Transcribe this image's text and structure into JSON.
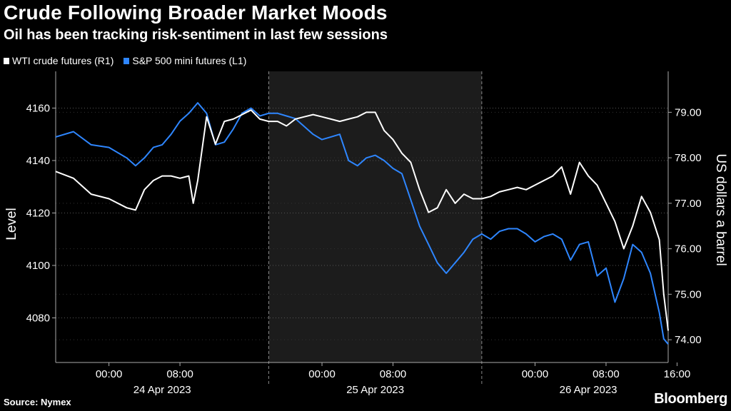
{
  "chart_data": {
    "type": "line",
    "title": "Crude Following Broader Market Moods",
    "subtitle": "Oil has been tracking risk-sentiment in last few sessions",
    "left_axis": {
      "label": "Level",
      "range": [
        4063,
        4174
      ],
      "ticks": [
        4080,
        4100,
        4120,
        4140,
        4160
      ]
    },
    "right_axis": {
      "label": "US dollars a barrel",
      "range": [
        73.5,
        79.9
      ],
      "ticks": [
        "74.00",
        "75.00",
        "76.00",
        "77.00",
        "78.00",
        "79.00"
      ]
    },
    "x_axis": {
      "time_labels": [
        "00:00",
        "08:00",
        "00:00",
        "08:00",
        "00:00",
        "08:00",
        "16:00"
      ],
      "date_labels": [
        "24 Apr 2023",
        "25 Apr 2023",
        "26 Apr 2023"
      ]
    },
    "x_range": [
      -6,
      63
    ],
    "time_ticks": [
      0,
      8,
      24,
      32,
      48,
      56,
      64
    ],
    "day_separators": [
      18,
      42
    ],
    "shaded_session": [
      18,
      42
    ],
    "grid": "horizontal-dotted",
    "legend_position": "top-left",
    "series": [
      {
        "name": "WTI crude futures (R1)",
        "axis": "right",
        "color": "#ffffff",
        "points": [
          [
            -6,
            77.7
          ],
          [
            -4,
            77.55
          ],
          [
            -2,
            77.2
          ],
          [
            0,
            77.1
          ],
          [
            2,
            76.9
          ],
          [
            3,
            76.85
          ],
          [
            4,
            77.3
          ],
          [
            5,
            77.5
          ],
          [
            6,
            77.6
          ],
          [
            7,
            77.6
          ],
          [
            8,
            77.55
          ],
          [
            9,
            77.6
          ],
          [
            9.5,
            77.0
          ],
          [
            10,
            77.5
          ],
          [
            11,
            78.9
          ],
          [
            12,
            78.3
          ],
          [
            13,
            78.8
          ],
          [
            14,
            78.85
          ],
          [
            15,
            78.95
          ],
          [
            16,
            79.05
          ],
          [
            17,
            78.85
          ],
          [
            18,
            78.8
          ],
          [
            19,
            78.8
          ],
          [
            20,
            78.7
          ],
          [
            21,
            78.85
          ],
          [
            22,
            78.9
          ],
          [
            23,
            78.95
          ],
          [
            24,
            78.9
          ],
          [
            25,
            78.85
          ],
          [
            26,
            78.8
          ],
          [
            27,
            78.85
          ],
          [
            28,
            78.9
          ],
          [
            29,
            79.0
          ],
          [
            30,
            79.0
          ],
          [
            31,
            78.6
          ],
          [
            32,
            78.4
          ],
          [
            33,
            78.1
          ],
          [
            34,
            77.9
          ],
          [
            35,
            77.3
          ],
          [
            36,
            76.8
          ],
          [
            37,
            76.9
          ],
          [
            38,
            77.3
          ],
          [
            39,
            77.0
          ],
          [
            40,
            77.2
          ],
          [
            41,
            77.1
          ],
          [
            42,
            77.1
          ],
          [
            43,
            77.15
          ],
          [
            44,
            77.25
          ],
          [
            45,
            77.3
          ],
          [
            46,
            77.35
          ],
          [
            47,
            77.3
          ],
          [
            48,
            77.4
          ],
          [
            49,
            77.5
          ],
          [
            50,
            77.6
          ],
          [
            51,
            77.8
          ],
          [
            52,
            77.2
          ],
          [
            53,
            77.9
          ],
          [
            54,
            77.6
          ],
          [
            55,
            77.4
          ],
          [
            56,
            77.0
          ],
          [
            57,
            76.6
          ],
          [
            58,
            76.0
          ],
          [
            59,
            76.5
          ],
          [
            60,
            77.15
          ],
          [
            61,
            76.8
          ],
          [
            62,
            76.2
          ],
          [
            62.5,
            75.0
          ],
          [
            63,
            74.2
          ]
        ]
      },
      {
        "name": "S&P 500 mini futures  (L1)",
        "axis": "left",
        "color": "#2e86ff",
        "points": [
          [
            -6,
            4149
          ],
          [
            -4,
            4151
          ],
          [
            -2,
            4146
          ],
          [
            0,
            4145
          ],
          [
            2,
            4141
          ],
          [
            3,
            4138
          ],
          [
            4,
            4141
          ],
          [
            5,
            4145
          ],
          [
            6,
            4146
          ],
          [
            7,
            4150
          ],
          [
            8,
            4155
          ],
          [
            9,
            4158
          ],
          [
            10,
            4162
          ],
          [
            11,
            4158
          ],
          [
            12,
            4146
          ],
          [
            13,
            4147
          ],
          [
            14,
            4152
          ],
          [
            15,
            4158
          ],
          [
            16,
            4160
          ],
          [
            17,
            4157
          ],
          [
            18,
            4158
          ],
          [
            19,
            4158
          ],
          [
            20,
            4157
          ],
          [
            21,
            4156
          ],
          [
            22,
            4153
          ],
          [
            23,
            4150
          ],
          [
            24,
            4148
          ],
          [
            25,
            4149
          ],
          [
            26,
            4150
          ],
          [
            27,
            4140
          ],
          [
            28,
            4138
          ],
          [
            29,
            4141
          ],
          [
            30,
            4142
          ],
          [
            31,
            4140
          ],
          [
            32,
            4137
          ],
          [
            33,
            4135
          ],
          [
            34,
            4125
          ],
          [
            35,
            4115
          ],
          [
            36,
            4108
          ],
          [
            37,
            4101
          ],
          [
            38,
            4097
          ],
          [
            39,
            4101
          ],
          [
            40,
            4105
          ],
          [
            41,
            4110
          ],
          [
            42,
            4112
          ],
          [
            43,
            4110
          ],
          [
            44,
            4113
          ],
          [
            45,
            4114
          ],
          [
            46,
            4114
          ],
          [
            47,
            4112
          ],
          [
            48,
            4109
          ],
          [
            49,
            4111
          ],
          [
            50,
            4112
          ],
          [
            51,
            4110
          ],
          [
            52,
            4102
          ],
          [
            53,
            4108
          ],
          [
            54,
            4109
          ],
          [
            55,
            4096
          ],
          [
            56,
            4099
          ],
          [
            57,
            4086
          ],
          [
            58,
            4095
          ],
          [
            59,
            4108
          ],
          [
            60,
            4105
          ],
          [
            61,
            4097
          ],
          [
            62,
            4082
          ],
          [
            62.5,
            4072
          ],
          [
            63,
            4070
          ]
        ]
      }
    ]
  },
  "footer": {
    "source": "Source: Nymex",
    "brand": "Bloomberg"
  }
}
